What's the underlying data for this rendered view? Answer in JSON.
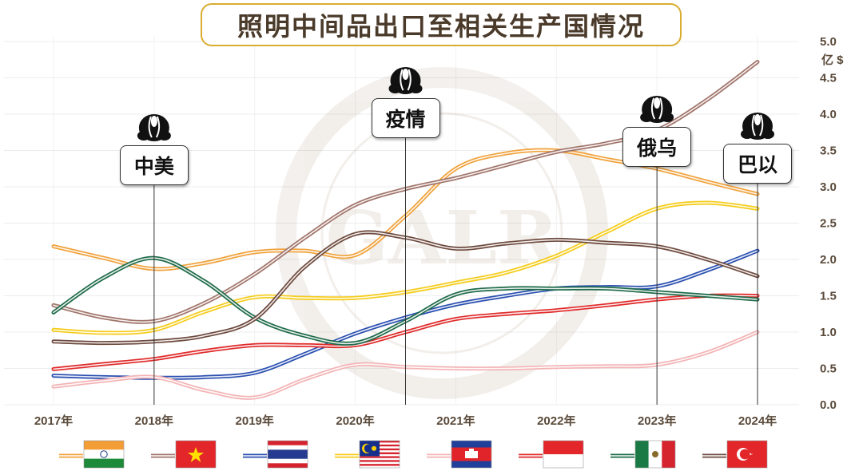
{
  "chart_data": {
    "type": "line",
    "title": "照明中间品出口至相关生产国情况",
    "ylabel": "亿 $",
    "ylim": [
      0,
      5
    ],
    "yticks": [
      "0.0",
      "0.5",
      "1.0",
      "1.5",
      "2.0",
      "2.5",
      "3.0",
      "3.5",
      "4.0",
      "4.5",
      "5.0"
    ],
    "categories": [
      "2017年",
      "2018年",
      "2019年",
      "2020年",
      "2021年",
      "2022年",
      "2023年",
      "2024年"
    ],
    "x": [
      2017.0,
      2017.5,
      2018.0,
      2018.5,
      2019.0,
      2019.5,
      2020.0,
      2020.5,
      2021.0,
      2021.5,
      2022.0,
      2022.5,
      2023.0,
      2023.5,
      2024.0
    ],
    "grid": true,
    "legend_position": "bottom",
    "series": [
      {
        "flag": "india",
        "color": "#f0a23c",
        "values": [
          2.18,
          2.02,
          1.87,
          1.95,
          2.1,
          2.12,
          2.06,
          2.6,
          3.25,
          3.46,
          3.5,
          3.38,
          3.25,
          3.07,
          2.9
        ]
      },
      {
        "flag": "vietnam",
        "color": "#a0746a",
        "values": [
          1.37,
          1.2,
          1.15,
          1.4,
          1.8,
          2.3,
          2.75,
          2.97,
          3.12,
          3.3,
          3.48,
          3.6,
          3.78,
          4.2,
          4.72
        ]
      },
      {
        "flag": "thailand",
        "color": "#2a4fb0",
        "values": [
          0.4,
          0.38,
          0.37,
          0.38,
          0.44,
          0.7,
          0.98,
          1.2,
          1.38,
          1.5,
          1.6,
          1.62,
          1.63,
          1.85,
          2.12
        ]
      },
      {
        "flag": "malaysia",
        "color": "#f5cc1a",
        "values": [
          1.03,
          0.99,
          1.03,
          1.28,
          1.48,
          1.47,
          1.47,
          1.55,
          1.68,
          1.82,
          2.05,
          2.38,
          2.7,
          2.78,
          2.7
        ]
      },
      {
        "flag": "cambodia",
        "color": "#f3b4b6",
        "values": [
          0.25,
          0.33,
          0.38,
          0.2,
          0.1,
          0.35,
          0.55,
          0.52,
          0.5,
          0.5,
          0.52,
          0.53,
          0.55,
          0.72,
          1.0
        ]
      },
      {
        "flag": "indonesia",
        "color": "#e02a2a",
        "values": [
          0.49,
          0.56,
          0.63,
          0.74,
          0.82,
          0.82,
          0.82,
          1.0,
          1.18,
          1.25,
          1.3,
          1.37,
          1.45,
          1.5,
          1.5
        ]
      },
      {
        "flag": "mexico",
        "color": "#1f6b4a",
        "values": [
          1.27,
          1.75,
          2.02,
          1.7,
          1.2,
          0.95,
          0.85,
          1.15,
          1.52,
          1.6,
          1.6,
          1.6,
          1.55,
          1.5,
          1.45
        ]
      },
      {
        "flag": "turkey",
        "color": "#6e4a3e",
        "values": [
          0.87,
          0.85,
          0.87,
          0.95,
          1.18,
          1.9,
          2.35,
          2.3,
          2.15,
          2.22,
          2.27,
          2.23,
          2.18,
          2.0,
          1.77
        ]
      }
    ],
    "annotations": [
      {
        "label": "中美",
        "x": 2018.0
      },
      {
        "label": "疫情",
        "x": 2020.5
      },
      {
        "label": "俄乌",
        "x": 2023.0
      },
      {
        "label": "巴以",
        "x": 2024.0
      }
    ]
  }
}
